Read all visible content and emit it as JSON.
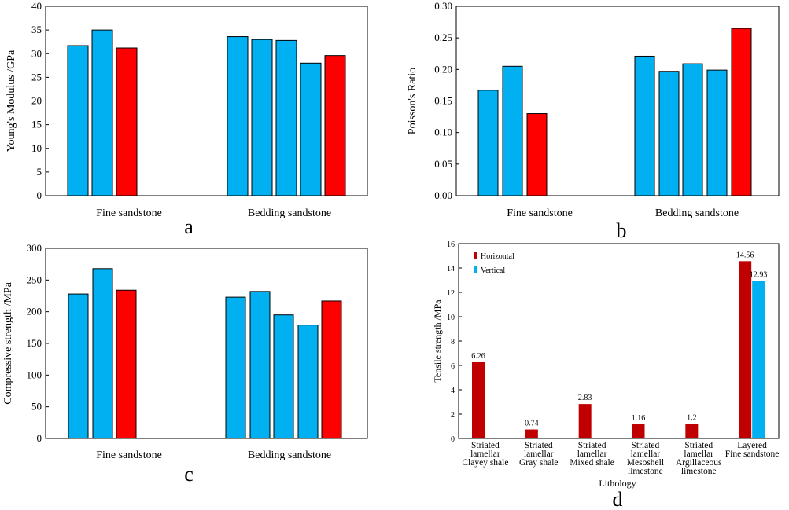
{
  "chart_data": [
    {
      "id": "a",
      "type": "bar",
      "panel_label": "a",
      "ylabel": "Young's Modulus /GPa",
      "ylim": [
        0,
        40
      ],
      "yticks": [
        "0",
        "5",
        "10",
        "15",
        "20",
        "25",
        "30",
        "35",
        "40"
      ],
      "groups": [
        {
          "name": "Fine sandstone",
          "values": [
            31.7,
            35.0,
            31.2
          ],
          "colors": [
            "#00b0f0",
            "#00b0f0",
            "#ff0000"
          ]
        },
        {
          "name": "Bedding sandstone",
          "values": [
            33.6,
            33.0,
            32.8,
            28.0,
            29.6
          ],
          "colors": [
            "#00b0f0",
            "#00b0f0",
            "#00b0f0",
            "#00b0f0",
            "#ff0000"
          ]
        }
      ]
    },
    {
      "id": "b",
      "type": "bar",
      "panel_label": "b",
      "ylabel": "Poisson's Ratio",
      "ylim": [
        0,
        0.3
      ],
      "yticks": [
        "0.00",
        "0.05",
        "0.10",
        "0.15",
        "0.20",
        "0.25",
        "0.30"
      ],
      "groups": [
        {
          "name": "Fine sandstone",
          "values": [
            0.167,
            0.205,
            0.13
          ],
          "colors": [
            "#00b0f0",
            "#00b0f0",
            "#ff0000"
          ]
        },
        {
          "name": "Bedding sandstone",
          "values": [
            0.221,
            0.197,
            0.209,
            0.199,
            0.265
          ],
          "colors": [
            "#00b0f0",
            "#00b0f0",
            "#00b0f0",
            "#00b0f0",
            "#ff0000"
          ]
        }
      ]
    },
    {
      "id": "c",
      "type": "bar",
      "panel_label": "c",
      "ylabel": "Compressive strength /MPa",
      "ylim": [
        0,
        300
      ],
      "yticks": [
        "0",
        "50",
        "100",
        "150",
        "200",
        "250",
        "300"
      ],
      "groups": [
        {
          "name": "Fine sandstone",
          "values": [
            228,
            268,
            234
          ],
          "colors": [
            "#00b0f0",
            "#00b0f0",
            "#ff0000"
          ]
        },
        {
          "name": "Bedding sandstone",
          "values": [
            223,
            232,
            195,
            179,
            217
          ],
          "colors": [
            "#00b0f0",
            "#00b0f0",
            "#00b0f0",
            "#00b0f0",
            "#ff0000"
          ]
        }
      ]
    },
    {
      "id": "d",
      "type": "bar",
      "panel_label": "d",
      "ylabel": "Tensile strength   /MPa",
      "xlabel": "Lithology",
      "ylim": [
        0,
        16
      ],
      "yticks": [
        "0",
        "2",
        "4",
        "6",
        "8",
        "10",
        "12",
        "14",
        "16"
      ],
      "legend": {
        "position": "top-left",
        "entries": [
          {
            "name": "Horizontal",
            "color": "#c00000"
          },
          {
            "name": "Vertical",
            "color": "#00b0f0"
          }
        ]
      },
      "categories": [
        {
          "lines": [
            "Striated",
            "lamellar",
            "Clayey shale"
          ],
          "horizontal": 6.26,
          "horizontal_label": "6.26"
        },
        {
          "lines": [
            "Striated",
            "lamellar",
            "Gray shale"
          ],
          "horizontal": 0.74,
          "horizontal_label": "0.74"
        },
        {
          "lines": [
            "Striated",
            "lamellar",
            "Mixed shale"
          ],
          "horizontal": 2.83,
          "horizontal_label": "2.83"
        },
        {
          "lines": [
            "Striated",
            "lamellar",
            "Mesoshell",
            "limestone"
          ],
          "horizontal": 1.16,
          "horizontal_label": "1.16"
        },
        {
          "lines": [
            "Striated",
            "lamellar",
            "Argillaceous",
            "limestone"
          ],
          "horizontal": 1.2,
          "horizontal_label": "1.2"
        },
        {
          "lines": [
            "Layered",
            "Fine sandstone"
          ],
          "horizontal": 14.56,
          "horizontal_label": "14.56",
          "vertical": 12.93,
          "vertical_label": "12.93"
        }
      ]
    }
  ]
}
